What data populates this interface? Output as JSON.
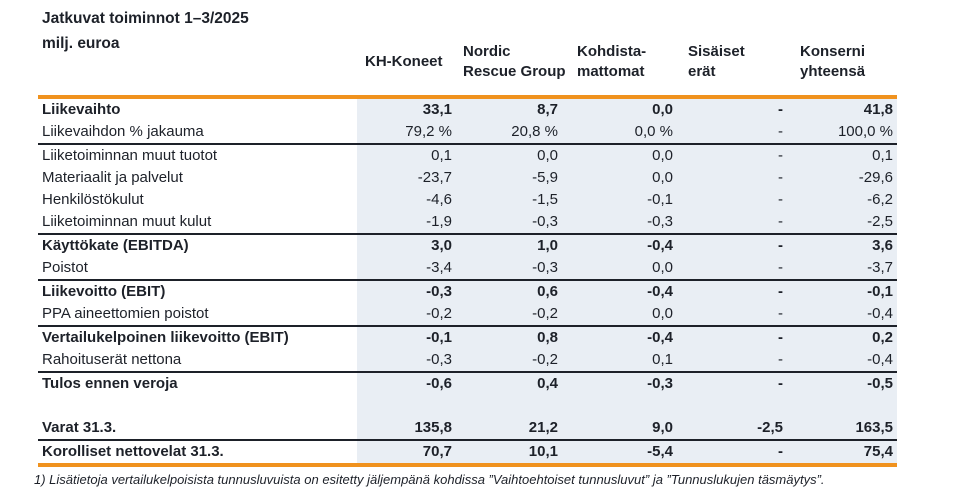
{
  "title": {
    "line1": "Jatkuvat toiminnot 1–3/2025",
    "line2": "milj. euroa"
  },
  "table": {
    "columns": [
      "KH-Koneet",
      "Nordic Rescue Group",
      "Kohdista-mattomat",
      "Sisäiset erät",
      "Konserni yhteensä"
    ],
    "rows": [
      {
        "label": "Liikevaihto",
        "bold": true,
        "values": [
          "33,1",
          "8,7",
          "0,0",
          "-",
          "41,8"
        ]
      },
      {
        "label": "Liikevaihdon % jakauma",
        "bold": false,
        "values": [
          "79,2 %",
          "20,8 %",
          "0,0 %",
          "-",
          "100,0 %"
        ],
        "divider_below": true
      },
      {
        "label": "Liiketoiminnan muut tuotot",
        "bold": false,
        "values": [
          "0,1",
          "0,0",
          "0,0",
          "-",
          "0,1"
        ]
      },
      {
        "label": "Materiaalit ja palvelut",
        "bold": false,
        "values": [
          "-23,7",
          "-5,9",
          "0,0",
          "-",
          "-29,6"
        ]
      },
      {
        "label": "Henkilöstökulut",
        "bold": false,
        "values": [
          "-4,6",
          "-1,5",
          "-0,1",
          "-",
          "-6,2"
        ]
      },
      {
        "label": "Liiketoiminnan muut kulut",
        "bold": false,
        "values": [
          "-1,9",
          "-0,3",
          "-0,3",
          "-",
          "-2,5"
        ],
        "divider_below": true
      },
      {
        "label": "Käyttökate (EBITDA)",
        "bold": true,
        "values": [
          "3,0",
          "1,0",
          "-0,4",
          "-",
          "3,6"
        ]
      },
      {
        "label": "Poistot",
        "bold": false,
        "values": [
          "-3,4",
          "-0,3",
          "0,0",
          "-",
          "-3,7"
        ],
        "divider_below": true
      },
      {
        "label": "Liikevoitto (EBIT)",
        "bold": true,
        "values": [
          "-0,3",
          "0,6",
          "-0,4",
          "-",
          "-0,1"
        ]
      },
      {
        "label": "PPA aineettomien poistot",
        "bold": false,
        "values": [
          "-0,2",
          "-0,2",
          "0,0",
          "-",
          "-0,4"
        ],
        "divider_below": true
      },
      {
        "label": "Vertailukelpoinen liikevoitto (EBIT)",
        "bold": true,
        "values": [
          "-0,1",
          "0,8",
          "-0,4",
          "-",
          "0,2"
        ]
      },
      {
        "label": "Rahoituserät nettona",
        "bold": false,
        "values": [
          "-0,3",
          "-0,2",
          "0,1",
          "-",
          "-0,4"
        ],
        "divider_below": true
      },
      {
        "label": "Tulos ennen veroja",
        "bold": true,
        "values": [
          "-0,6",
          "0,4",
          "-0,3",
          "-",
          "-0,5"
        ]
      },
      {
        "label": "",
        "bold": false,
        "spacer": true,
        "values": [
          "",
          "",
          "",
          "",
          ""
        ]
      },
      {
        "label": "Varat 31.3.",
        "bold": true,
        "values": [
          "135,8",
          "21,2",
          "9,0",
          "-2,5",
          "163,5"
        ],
        "divider_below": true
      },
      {
        "label": "Korolliset nettovelat 31.3.",
        "bold": true,
        "values": [
          "70,7",
          "10,1",
          "-5,4",
          "-",
          "75,4"
        ]
      }
    ]
  },
  "footnote": "1) Lisätietoja vertailukelpoisista tunnusluvuista on esitetty jäljempänä kohdissa ”Vaihtoehtoiset tunnusluvut” ja ”Tunnuslukujen täsmäytys”.",
  "colors": {
    "accent_orange": "#F0921E",
    "row_shade": "#E9EEF4",
    "text_ink": "#1D2129"
  }
}
